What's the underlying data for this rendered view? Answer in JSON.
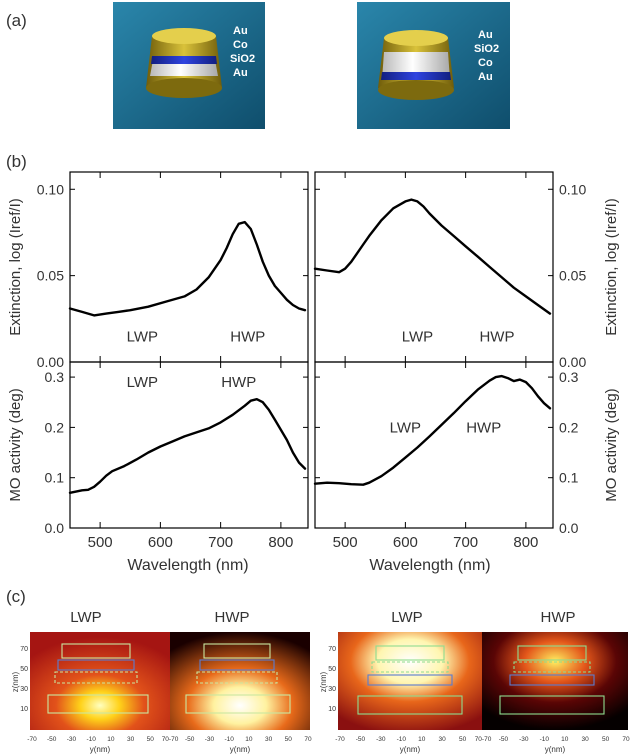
{
  "panel_labels": {
    "a": "(a)",
    "b": "(b)",
    "c": "(c)"
  },
  "panel_a": {
    "left": {
      "layers": [
        "Au",
        "Co",
        "SiO2",
        "Au"
      ]
    },
    "right": {
      "layers": [
        "Au",
        "SiO2",
        "Co",
        "Au"
      ]
    }
  },
  "chart_data": [
    {
      "type": "line",
      "id": "extinction-left",
      "ylabel": "Extinction, log (Iref/I)",
      "xlim": [
        450,
        845
      ],
      "ylim": [
        0,
        0.11
      ],
      "xticks": [
        500,
        600,
        700,
        800
      ],
      "yticks": [
        "0.00",
        "0.05",
        "0.10"
      ],
      "x": [
        450,
        470,
        490,
        510,
        530,
        550,
        580,
        610,
        640,
        660,
        680,
        700,
        710,
        720,
        730,
        740,
        750,
        760,
        770,
        780,
        790,
        800,
        810,
        820,
        830,
        840
      ],
      "y": [
        0.031,
        0.029,
        0.027,
        0.028,
        0.029,
        0.03,
        0.032,
        0.035,
        0.038,
        0.042,
        0.049,
        0.059,
        0.066,
        0.074,
        0.08,
        0.081,
        0.077,
        0.068,
        0.058,
        0.05,
        0.044,
        0.04,
        0.036,
        0.033,
        0.031,
        0.03
      ],
      "annotations": [
        {
          "text": "LWP",
          "x": 570,
          "y": 0.012
        },
        {
          "text": "HWP",
          "x": 745,
          "y": 0.012
        }
      ]
    },
    {
      "type": "line",
      "id": "mo-left",
      "ylabel": "MO activity (deg)",
      "xlim": [
        450,
        845
      ],
      "ylim": [
        0,
        0.33
      ],
      "xticks": [
        500,
        600,
        700,
        800
      ],
      "yticks": [
        "0.0",
        "0.1",
        "0.2",
        "0.3"
      ],
      "x": [
        450,
        470,
        480,
        490,
        500,
        510,
        520,
        540,
        560,
        580,
        600,
        620,
        640,
        660,
        680,
        700,
        720,
        740,
        750,
        760,
        770,
        780,
        790,
        800,
        810,
        820,
        830,
        840
      ],
      "y": [
        0.07,
        0.075,
        0.076,
        0.082,
        0.092,
        0.104,
        0.113,
        0.123,
        0.136,
        0.15,
        0.162,
        0.172,
        0.182,
        0.19,
        0.198,
        0.21,
        0.225,
        0.243,
        0.253,
        0.256,
        0.25,
        0.235,
        0.215,
        0.195,
        0.175,
        0.15,
        0.13,
        0.118
      ],
      "annotations": [
        {
          "text": "LWP",
          "x": 570,
          "y": 0.28
        },
        {
          "text": "HWP",
          "x": 730,
          "y": 0.28
        }
      ]
    },
    {
      "type": "line",
      "id": "extinction-right",
      "ylabel": "Extinction, log (Iref/I)",
      "xlim": [
        450,
        845
      ],
      "ylim": [
        0,
        0.11
      ],
      "xticks": [
        500,
        600,
        700,
        800
      ],
      "yticks": [
        "0.00",
        "0.05",
        "0.10"
      ],
      "x": [
        450,
        470,
        490,
        500,
        510,
        520,
        530,
        540,
        560,
        580,
        600,
        610,
        620,
        630,
        640,
        660,
        680,
        700,
        720,
        740,
        760,
        780,
        800,
        820,
        840
      ],
      "y": [
        0.054,
        0.053,
        0.052,
        0.054,
        0.058,
        0.063,
        0.068,
        0.073,
        0.082,
        0.089,
        0.093,
        0.094,
        0.093,
        0.09,
        0.086,
        0.079,
        0.073,
        0.067,
        0.061,
        0.055,
        0.049,
        0.043,
        0.038,
        0.033,
        0.028
      ],
      "annotations": [
        {
          "text": "LWP",
          "x": 620,
          "y": 0.012
        },
        {
          "text": "HWP",
          "x": 752,
          "y": 0.012
        }
      ]
    },
    {
      "type": "line",
      "id": "mo-right",
      "ylabel": "MO activity (deg)",
      "xlim": [
        450,
        845
      ],
      "ylim": [
        0,
        0.33
      ],
      "xticks": [
        500,
        600,
        700,
        800
      ],
      "yticks": [
        "0.0",
        "0.1",
        "0.2",
        "0.3"
      ],
      "x": [
        450,
        470,
        490,
        510,
        530,
        540,
        560,
        580,
        600,
        620,
        640,
        660,
        680,
        700,
        720,
        740,
        750,
        760,
        770,
        780,
        790,
        800,
        810,
        820,
        830,
        840
      ],
      "y": [
        0.088,
        0.09,
        0.089,
        0.087,
        0.086,
        0.09,
        0.103,
        0.12,
        0.14,
        0.16,
        0.182,
        0.205,
        0.228,
        0.252,
        0.275,
        0.293,
        0.3,
        0.302,
        0.298,
        0.292,
        0.295,
        0.29,
        0.278,
        0.262,
        0.248,
        0.238
      ],
      "annotations": [
        {
          "text": "LWP",
          "x": 600,
          "y": 0.19
        },
        {
          "text": "HWP",
          "x": 730,
          "y": 0.19
        }
      ]
    }
  ],
  "xlabel": "Wavelength (nm)",
  "panel_c": {
    "titles": [
      "LWP",
      "HWP",
      "LWP",
      "HWP"
    ],
    "ylabel": "z(nm)",
    "xlabel": "y(nm)",
    "zticks": [
      "10",
      "30",
      "50",
      "70"
    ],
    "yticks": [
      "-70",
      "-50",
      "-30",
      "-10",
      "10",
      "30",
      "50",
      "70-70",
      "-50",
      "-30",
      "-10",
      "10",
      "30",
      "50",
      "70"
    ]
  },
  "colors": {
    "substrate": "#1f6d8e",
    "gold": "#b9a21b",
    "blue": "#1e2fb8",
    "white": "#f4f4f4"
  }
}
